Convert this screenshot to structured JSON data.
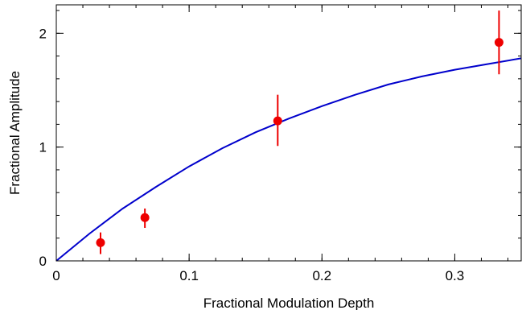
{
  "chart_data": {
    "type": "scatter",
    "xlabel": "Fractional Modulation Depth",
    "ylabel": "Fractional Amplitude",
    "xlim": [
      0,
      0.35
    ],
    "ylim": [
      0,
      2.25
    ],
    "x_ticks": [
      0,
      0.1,
      0.2,
      0.3
    ],
    "x_tick_labels": [
      "0",
      "0.1",
      "0.2",
      "0.3"
    ],
    "x_minor_step": 0.02,
    "y_ticks": [
      0,
      1,
      2
    ],
    "y_tick_labels": [
      "0",
      "1",
      "2"
    ],
    "y_minor_step": 0.2,
    "grid": false,
    "points": [
      {
        "x": 0.0333,
        "y": 0.16,
        "y_err_low": 0.1,
        "y_err_high": 0.09
      },
      {
        "x": 0.0667,
        "y": 0.38,
        "y_err_low": 0.09,
        "y_err_high": 0.08
      },
      {
        "x": 0.1667,
        "y": 1.23,
        "y_err_low": 0.22,
        "y_err_high": 0.23
      },
      {
        "x": 0.3333,
        "y": 1.92,
        "y_err_low": 0.28,
        "y_err_high": 0.28
      }
    ],
    "fit_curve": {
      "x": [
        0,
        0.025,
        0.05,
        0.075,
        0.1,
        0.125,
        0.15,
        0.175,
        0.2,
        0.225,
        0.25,
        0.275,
        0.3,
        0.325,
        0.35
      ],
      "y": [
        0,
        0.24,
        0.46,
        0.65,
        0.83,
        0.99,
        1.13,
        1.25,
        1.36,
        1.46,
        1.55,
        1.62,
        1.68,
        1.73,
        1.78
      ]
    },
    "colors": {
      "points": "#ee0000",
      "fit_line": "#0000cc",
      "axes": "#000000"
    }
  }
}
